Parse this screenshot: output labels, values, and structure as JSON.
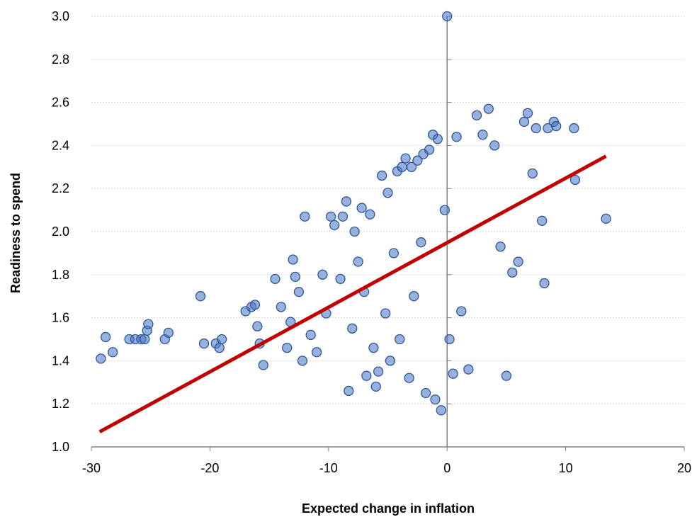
{
  "chart_data": {
    "type": "scatter",
    "title": "",
    "xlabel": "Expected change in inflation",
    "ylabel": "Readiness to spend",
    "xlim": [
      -30,
      20
    ],
    "ylim": [
      1.0,
      3.0
    ],
    "x_ticks": [
      -30,
      -20,
      -10,
      0,
      10,
      20
    ],
    "y_ticks": [
      1.0,
      1.2,
      1.4,
      1.6,
      1.8,
      2.0,
      2.2,
      2.4,
      2.6,
      2.8,
      3.0
    ],
    "gridlines": "horizontal",
    "legend": "none",
    "colors": {
      "points": "#4472c4",
      "point_edge": "#2f5597",
      "trendline": "#c00000",
      "grid": "#d9d9d9",
      "axis": "#808080"
    },
    "series": [
      {
        "marker": "circle",
        "points": [
          [
            0,
            3.0
          ],
          [
            -29.2,
            1.41
          ],
          [
            -28.8,
            1.51
          ],
          [
            -28.2,
            1.44
          ],
          [
            -26.8,
            1.5
          ],
          [
            -26.3,
            1.5
          ],
          [
            -25.8,
            1.5
          ],
          [
            -25.5,
            1.5
          ],
          [
            -25.3,
            1.54
          ],
          [
            -25.2,
            1.57
          ],
          [
            -23.8,
            1.5
          ],
          [
            -23.5,
            1.53
          ],
          [
            -20.8,
            1.7
          ],
          [
            -20.5,
            1.48
          ],
          [
            -19.5,
            1.48
          ],
          [
            -19.2,
            1.46
          ],
          [
            -19.0,
            1.5
          ],
          [
            -17.0,
            1.63
          ],
          [
            -16.5,
            1.65
          ],
          [
            -16.2,
            1.66
          ],
          [
            -16.0,
            1.56
          ],
          [
            -15.8,
            1.48
          ],
          [
            -15.5,
            1.38
          ],
          [
            -14.5,
            1.78
          ],
          [
            -14.0,
            1.65
          ],
          [
            -13.5,
            1.46
          ],
          [
            -13.2,
            1.58
          ],
          [
            -13.0,
            1.87
          ],
          [
            -12.8,
            1.79
          ],
          [
            -12.5,
            1.72
          ],
          [
            -12.2,
            1.4
          ],
          [
            -12.0,
            2.07
          ],
          [
            -11.5,
            1.52
          ],
          [
            -11.0,
            1.44
          ],
          [
            -10.5,
            1.8
          ],
          [
            -10.2,
            1.62
          ],
          [
            -9.8,
            2.07
          ],
          [
            -9.5,
            2.03
          ],
          [
            -9.0,
            1.78
          ],
          [
            -8.8,
            2.07
          ],
          [
            -8.5,
            2.14
          ],
          [
            -8.3,
            1.26
          ],
          [
            -8.0,
            1.55
          ],
          [
            -7.8,
            2.0
          ],
          [
            -7.5,
            1.86
          ],
          [
            -7.2,
            2.11
          ],
          [
            -7.0,
            1.72
          ],
          [
            -6.8,
            1.33
          ],
          [
            -6.5,
            2.08
          ],
          [
            -6.2,
            1.46
          ],
          [
            -6.0,
            1.28
          ],
          [
            -5.8,
            1.35
          ],
          [
            -5.5,
            2.26
          ],
          [
            -5.2,
            1.62
          ],
          [
            -5.0,
            2.18
          ],
          [
            -4.8,
            1.4
          ],
          [
            -4.5,
            1.9
          ],
          [
            -4.2,
            2.28
          ],
          [
            -4.0,
            1.5
          ],
          [
            -3.8,
            2.3
          ],
          [
            -3.5,
            2.34
          ],
          [
            -3.2,
            1.32
          ],
          [
            -3.0,
            2.3
          ],
          [
            -2.8,
            1.7
          ],
          [
            -2.5,
            2.33
          ],
          [
            -2.2,
            1.95
          ],
          [
            -2.0,
            2.36
          ],
          [
            -1.8,
            1.25
          ],
          [
            -1.5,
            2.38
          ],
          [
            -1.2,
            2.45
          ],
          [
            -1.0,
            1.22
          ],
          [
            -0.8,
            2.43
          ],
          [
            -0.5,
            1.17
          ],
          [
            -0.2,
            2.1
          ],
          [
            0.2,
            1.5
          ],
          [
            0.5,
            1.34
          ],
          [
            0.8,
            2.44
          ],
          [
            1.2,
            1.63
          ],
          [
            1.8,
            1.36
          ],
          [
            2.5,
            2.54
          ],
          [
            3.0,
            2.45
          ],
          [
            3.5,
            2.57
          ],
          [
            4.0,
            2.4
          ],
          [
            4.5,
            1.93
          ],
          [
            5.0,
            1.33
          ],
          [
            5.5,
            1.81
          ],
          [
            6.0,
            1.86
          ],
          [
            6.5,
            2.51
          ],
          [
            6.8,
            2.55
          ],
          [
            7.2,
            2.27
          ],
          [
            7.5,
            2.48
          ],
          [
            8.0,
            2.05
          ],
          [
            8.2,
            1.76
          ],
          [
            8.5,
            2.48
          ],
          [
            9.0,
            2.51
          ],
          [
            9.2,
            2.49
          ],
          [
            10.7,
            2.48
          ],
          [
            10.8,
            2.24
          ],
          [
            13.4,
            2.06
          ]
        ]
      }
    ],
    "trendline": {
      "x": [
        -29.3,
        13.4
      ],
      "y": [
        1.07,
        2.35
      ]
    }
  }
}
